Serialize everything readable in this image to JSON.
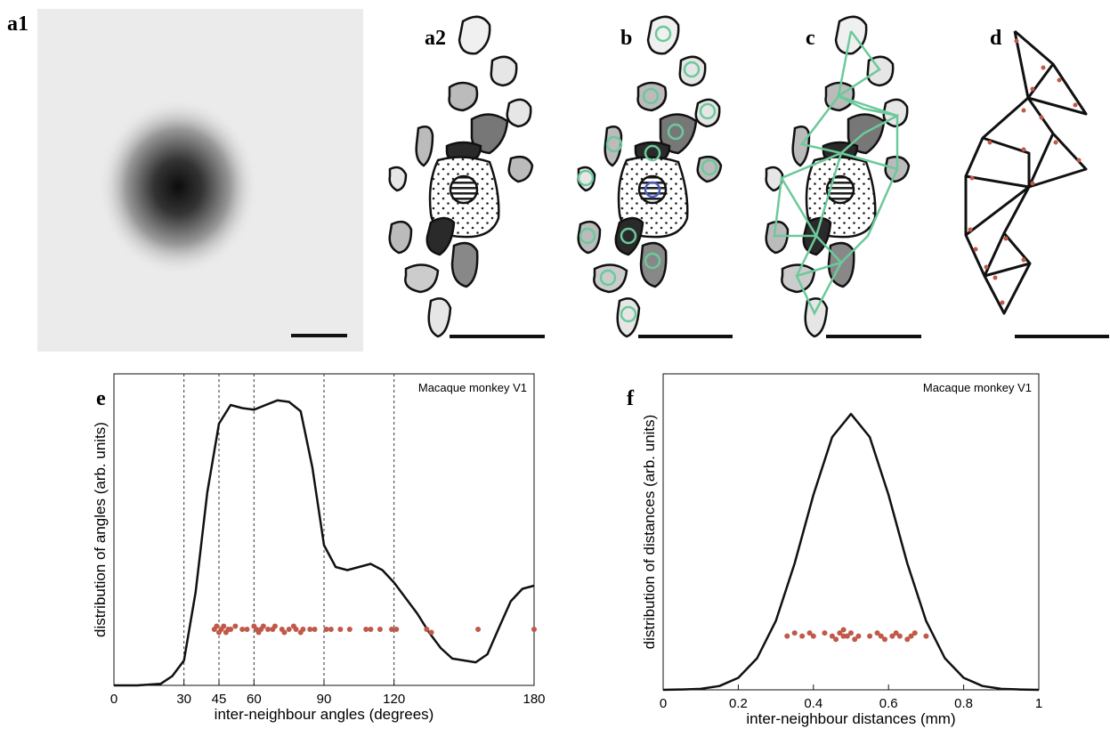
{
  "panel_labels": [
    "a1",
    "a2",
    "b",
    "c",
    "d",
    "e",
    "f"
  ],
  "chart_data": [
    {
      "type": "line",
      "annotation": "Macaque monkey V1",
      "xlabel": "inter-neighbour angles (degrees)",
      "ylabel": "distribution of angles (arb. units)",
      "xlim": [
        0,
        180
      ],
      "xticks": [
        0,
        30,
        45,
        60,
        90,
        120,
        180
      ],
      "ylim": [
        0,
        1
      ],
      "yticks": [],
      "vlines": [
        30,
        45,
        60,
        90,
        120
      ],
      "series": [
        {
          "type": "line",
          "color": "#111111",
          "x": [
            0,
            10,
            20,
            25,
            30,
            35,
            40,
            45,
            50,
            55,
            60,
            65,
            70,
            75,
            80,
            85,
            90,
            95,
            100,
            105,
            110,
            115,
            120,
            125,
            130,
            135,
            140,
            145,
            150,
            155,
            160,
            165,
            170,
            175,
            180
          ],
          "values": [
            0,
            0,
            0.005,
            0.03,
            0.08,
            0.3,
            0.62,
            0.84,
            0.9,
            0.89,
            0.885,
            0.9,
            0.915,
            0.91,
            0.88,
            0.7,
            0.45,
            0.38,
            0.37,
            0.38,
            0.39,
            0.37,
            0.33,
            0.28,
            0.23,
            0.17,
            0.12,
            0.086,
            0.08,
            0.074,
            0.1,
            0.186,
            0.27,
            0.31,
            0.32
          ]
        },
        {
          "type": "scatter",
          "color": "#c0594a",
          "x": [
            43,
            44,
            45,
            46,
            47,
            48,
            49,
            50,
            52,
            55,
            57,
            60,
            61,
            62,
            63,
            64,
            66,
            68,
            69,
            72,
            73,
            75,
            77,
            78,
            80,
            81,
            84,
            86,
            91,
            93,
            97,
            101,
            108,
            110,
            114,
            119,
            121,
            134,
            136,
            156,
            180
          ],
          "values": [
            0.18,
            0.19,
            0.17,
            0.18,
            0.19,
            0.17,
            0.18,
            0.18,
            0.19,
            0.18,
            0.18,
            0.19,
            0.18,
            0.17,
            0.18,
            0.19,
            0.18,
            0.18,
            0.19,
            0.18,
            0.17,
            0.18,
            0.19,
            0.18,
            0.17,
            0.18,
            0.18,
            0.18,
            0.18,
            0.18,
            0.18,
            0.18,
            0.18,
            0.18,
            0.18,
            0.18,
            0.18,
            0.18,
            0.17,
            0.18,
            0.18
          ]
        }
      ]
    },
    {
      "type": "line",
      "annotation": "Macaque monkey V1",
      "xlabel": "inter-neighbour distances (mm)",
      "ylabel": "distribution of distances (arb. units)",
      "xlim": [
        0,
        1
      ],
      "xticks": [
        0,
        0.2,
        0.4,
        0.6,
        0.8,
        1
      ],
      "ylim": [
        0,
        1
      ],
      "yticks": [],
      "vlines": [],
      "series": [
        {
          "type": "line",
          "color": "#111111",
          "x": [
            0,
            0.05,
            0.1,
            0.15,
            0.2,
            0.25,
            0.3,
            0.35,
            0.4,
            0.45,
            0.5,
            0.55,
            0.6,
            0.65,
            0.7,
            0.75,
            0.8,
            0.85,
            0.9,
            0.95,
            1
          ],
          "values": [
            0,
            0.001,
            0.003,
            0.012,
            0.038,
            0.1,
            0.218,
            0.4,
            0.617,
            0.8,
            0.873,
            0.8,
            0.617,
            0.4,
            0.218,
            0.1,
            0.038,
            0.012,
            0.003,
            0.001,
            0
          ]
        },
        {
          "type": "scatter",
          "color": "#c0594a",
          "x": [
            0.33,
            0.35,
            0.37,
            0.39,
            0.4,
            0.43,
            0.45,
            0.46,
            0.47,
            0.48,
            0.48,
            0.49,
            0.5,
            0.51,
            0.52,
            0.55,
            0.57,
            0.58,
            0.59,
            0.61,
            0.62,
            0.63,
            0.65,
            0.66,
            0.67,
            0.7
          ],
          "values": [
            0.17,
            0.18,
            0.17,
            0.18,
            0.17,
            0.18,
            0.17,
            0.16,
            0.18,
            0.17,
            0.19,
            0.17,
            0.18,
            0.16,
            0.17,
            0.17,
            0.18,
            0.17,
            0.16,
            0.17,
            0.18,
            0.17,
            0.16,
            0.17,
            0.18,
            0.17
          ]
        }
      ]
    }
  ]
}
